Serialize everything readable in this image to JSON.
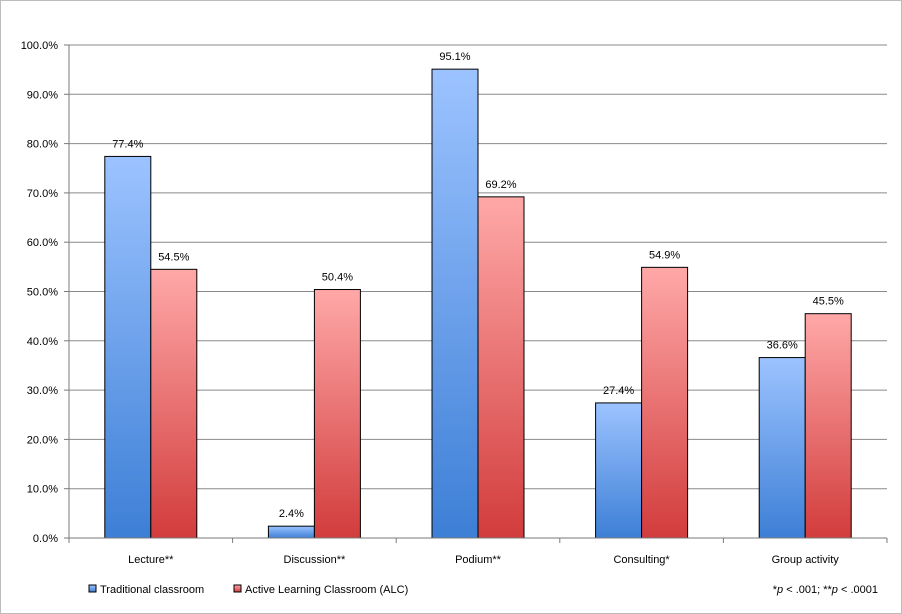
{
  "chart_data": {
    "type": "bar",
    "categories": [
      "Lecture**",
      "Discussion**",
      "Podium**",
      "Consulting*",
      "Group activity"
    ],
    "series": [
      {
        "name": "Traditional classroom",
        "values": [
          77.4,
          2.4,
          95.1,
          27.4,
          36.6
        ],
        "color_top": "#9cc3ff",
        "color_bottom": "#3d7fd6"
      },
      {
        "name": "Active Learning Classroom (ALC)",
        "values": [
          54.5,
          50.4,
          69.2,
          54.9,
          45.5
        ],
        "color_top": "#ffa8a8",
        "color_bottom": "#d23c3c"
      }
    ],
    "data_labels": [
      [
        "77.4%",
        "2.4%",
        "95.1%",
        "27.4%",
        "36.6%"
      ],
      [
        "54.5%",
        "50.4%",
        "69.2%",
        "54.9%",
        "45.5%"
      ]
    ],
    "ylim": [
      0,
      100
    ],
    "yticks": [
      "0.0%",
      "10.0%",
      "20.0%",
      "30.0%",
      "40.0%",
      "50.0%",
      "60.0%",
      "70.0%",
      "80.0%",
      "90.0%",
      "100.0%"
    ],
    "grid": true,
    "legend_position": "bottom-left",
    "title": "",
    "xlabel": "",
    "ylabel": "",
    "footnote": {
      "parts": [
        {
          "text": "*",
          "italic": false
        },
        {
          "text": "p",
          "italic": true
        },
        {
          "text": " < .001; **",
          "italic": false
        },
        {
          "text": "p",
          "italic": true
        },
        {
          "text": " < .0001",
          "italic": false
        }
      ]
    }
  }
}
